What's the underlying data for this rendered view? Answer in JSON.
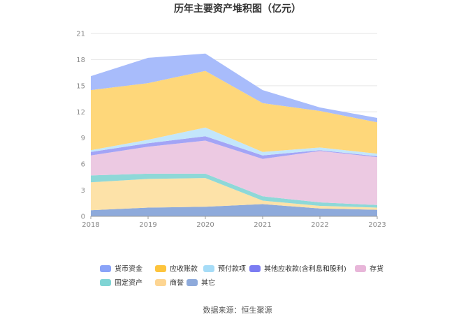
{
  "chart_data": {
    "type": "area",
    "stacked": true,
    "title": "历年主要资产堆积图（亿元）",
    "x": [
      "2018",
      "2019",
      "2020",
      "2021",
      "2022",
      "2023"
    ],
    "ylim": [
      0,
      21
    ],
    "yticks": [
      0,
      3,
      6,
      9,
      12,
      15,
      18,
      21
    ],
    "grid": true,
    "legend_position": "bottom",
    "series": [
      {
        "name": "其它",
        "color": "#8eaadb",
        "values": [
          0.7,
          1.0,
          1.1,
          1.4,
          0.9,
          0.75
        ]
      },
      {
        "name": "商誉",
        "color": "#fde2a8",
        "values": [
          3.2,
          3.3,
          3.3,
          0.4,
          0.3,
          0.25
        ]
      },
      {
        "name": "固定资产",
        "color": "#8ed8d8",
        "values": [
          0.8,
          0.6,
          0.5,
          0.5,
          0.4,
          0.3
        ]
      },
      {
        "name": "存货",
        "color": "#ecc9e2",
        "values": [
          2.3,
          3.1,
          3.8,
          4.3,
          5.9,
          5.5
        ]
      },
      {
        "name": "其他应收款(含利息和股利)",
        "color": "#a3a4f6",
        "values": [
          0.4,
          0.4,
          0.5,
          0.4,
          0.1,
          0.1
        ]
      },
      {
        "name": "预付款项",
        "color": "#c3e6fb",
        "values": [
          0.2,
          0.4,
          1.0,
          0.4,
          0.3,
          0.3
        ]
      },
      {
        "name": "应收账款",
        "color": "#fed77a",
        "values": [
          6.9,
          6.5,
          6.5,
          5.6,
          4.2,
          3.6
        ]
      },
      {
        "name": "货币资金",
        "color": "#a8bcfb",
        "values": [
          1.6,
          2.9,
          2.0,
          1.5,
          0.4,
          0.5
        ]
      }
    ],
    "legend_order": [
      "货币资金",
      "应收账款",
      "预付款项",
      "其他应收款(含利息和股利)",
      "存货",
      "固定资产",
      "商誉",
      "其它"
    ],
    "legend_colors": {
      "货币资金": "#8aa3f8",
      "应收账款": "#fdc43d",
      "预付款项": "#a6dcf7",
      "其他应收款(含利息和股利)": "#7b7cf2",
      "存货": "#e8b6d9",
      "固定资产": "#7fd4d4",
      "商誉": "#fdd592",
      "其它": "#8eaadb"
    }
  },
  "footer": {
    "source": "数据来源：恒生聚源"
  }
}
